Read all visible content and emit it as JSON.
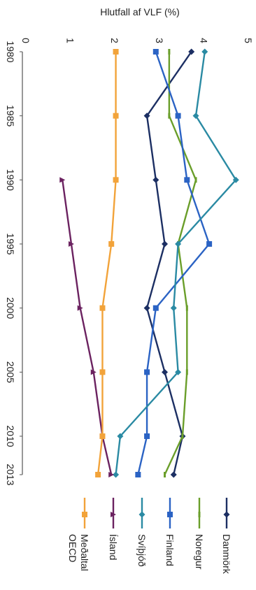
{
  "chart_data": {
    "type": "line",
    "title": "",
    "ylabel": "Hlutfall af VLF (%)",
    "xlabel": "",
    "x": [
      1980,
      1985,
      1990,
      1995,
      2000,
      2005,
      2010,
      2013
    ],
    "x_ticks": [
      "1980",
      "1985",
      "1990",
      "1995",
      "2000",
      "2005",
      "2010",
      "2013"
    ],
    "y_ticks": [
      "0",
      "1",
      "2",
      "3",
      "4",
      "5"
    ],
    "ylim": [
      0,
      5
    ],
    "grid": false,
    "orientation": "rotated 90° clockwise",
    "legend_position": "bottom",
    "series": [
      {
        "name": "Danmörk",
        "color": "#1c2f63",
        "marker": "diamond",
        "values": [
          3.8,
          2.8,
          3.0,
          3.2,
          2.8,
          3.2,
          3.6,
          3.4
        ]
      },
      {
        "name": "Noregur",
        "color": "#6a9e2a",
        "marker": "dash",
        "values": [
          3.3,
          3.3,
          3.9,
          3.5,
          3.7,
          3.7,
          3.6,
          3.2
        ]
      },
      {
        "name": "Finland",
        "color": "#2b63c4",
        "marker": "square",
        "values": [
          3.0,
          3.5,
          3.7,
          4.2,
          3.0,
          2.8,
          2.8,
          2.6
        ]
      },
      {
        "name": "Svíþjóð",
        "color": "#2a8aa3",
        "marker": "diamond",
        "values": [
          4.1,
          3.9,
          4.8,
          3.5,
          3.4,
          3.5,
          2.2,
          2.1
        ]
      },
      {
        "name": "Ísland",
        "color": "#6b2260",
        "marker": "triangle",
        "values": [
          null,
          null,
          0.9,
          1.1,
          1.3,
          1.6,
          1.8,
          2.0
        ]
      },
      {
        "name": "Meðaltal OECD",
        "color": "#f2a33a",
        "marker": "square",
        "values": [
          2.1,
          2.1,
          2.1,
          2.0,
          1.8,
          1.8,
          1.8,
          1.7
        ]
      }
    ]
  }
}
